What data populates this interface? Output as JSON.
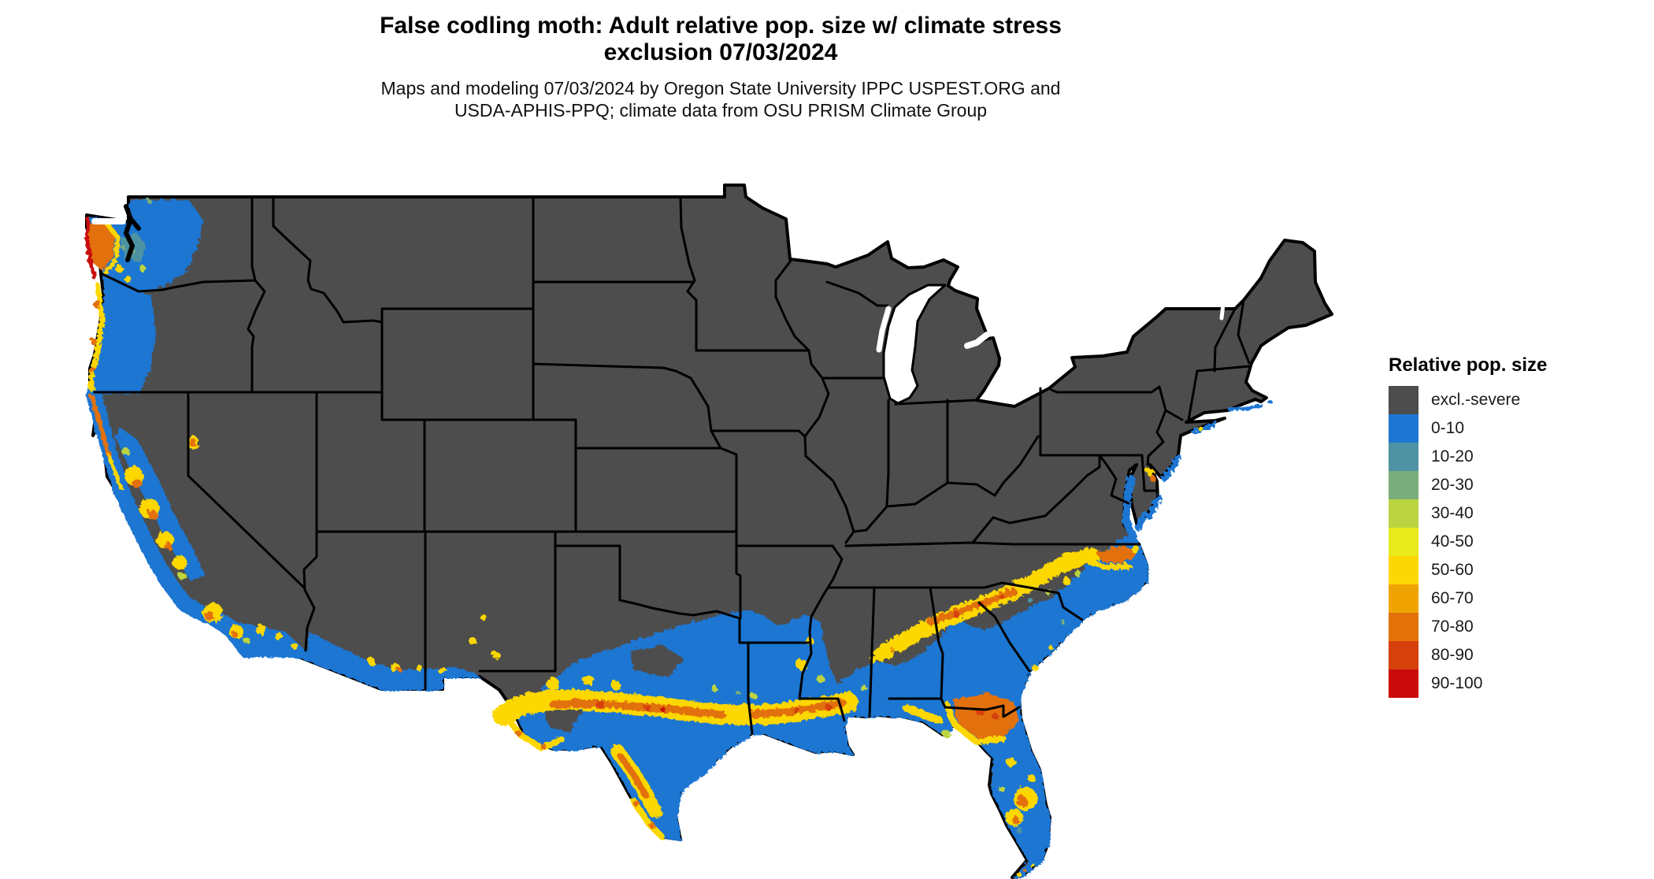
{
  "header": {
    "title_line1": "False codling moth: Adult relative pop. size w/ climate stress",
    "title_line2": "exclusion 07/03/2024",
    "subtitle_line1": "Maps and modeling 07/03/2024 by Oregon State University IPPC USPEST.ORG and",
    "subtitle_line2": "USDA-APHIS-PPQ; climate data from OSU PRISM Climate Group"
  },
  "legend": {
    "title": "Relative pop. size",
    "items": [
      {
        "label": "excl.-severe",
        "color": "#4D4D4D"
      },
      {
        "label": "0-10",
        "color": "#1F76D2"
      },
      {
        "label": "10-20",
        "color": "#4E93A3"
      },
      {
        "label": "20-30",
        "color": "#7BAE7C"
      },
      {
        "label": "30-40",
        "color": "#BCD441"
      },
      {
        "label": "40-50",
        "color": "#E8EA1C"
      },
      {
        "label": "50-60",
        "color": "#FCD703"
      },
      {
        "label": "60-70",
        "color": "#F0A402"
      },
      {
        "label": "70-80",
        "color": "#E27109"
      },
      {
        "label": "80-90",
        "color": "#D6400B"
      },
      {
        "label": "90-100",
        "color": "#C90B0B"
      }
    ]
  },
  "colors": {
    "excl": "#4D4D4D",
    "blue": "#1F76D2",
    "teal": "#4E93A3",
    "green": "#7BAE7C",
    "ygreen": "#BCD441",
    "yellow": "#E8EA1C",
    "gold": "#FCD703",
    "orange": "#F0A402",
    "dorange": "#E27109",
    "rorange": "#D6400B",
    "red": "#C90B0B",
    "border": "#000000",
    "background": "#FFFFFF"
  },
  "map": {
    "kind": "raster choropleth",
    "area": "contiguous United States",
    "date_shown": "07/03/2024"
  }
}
